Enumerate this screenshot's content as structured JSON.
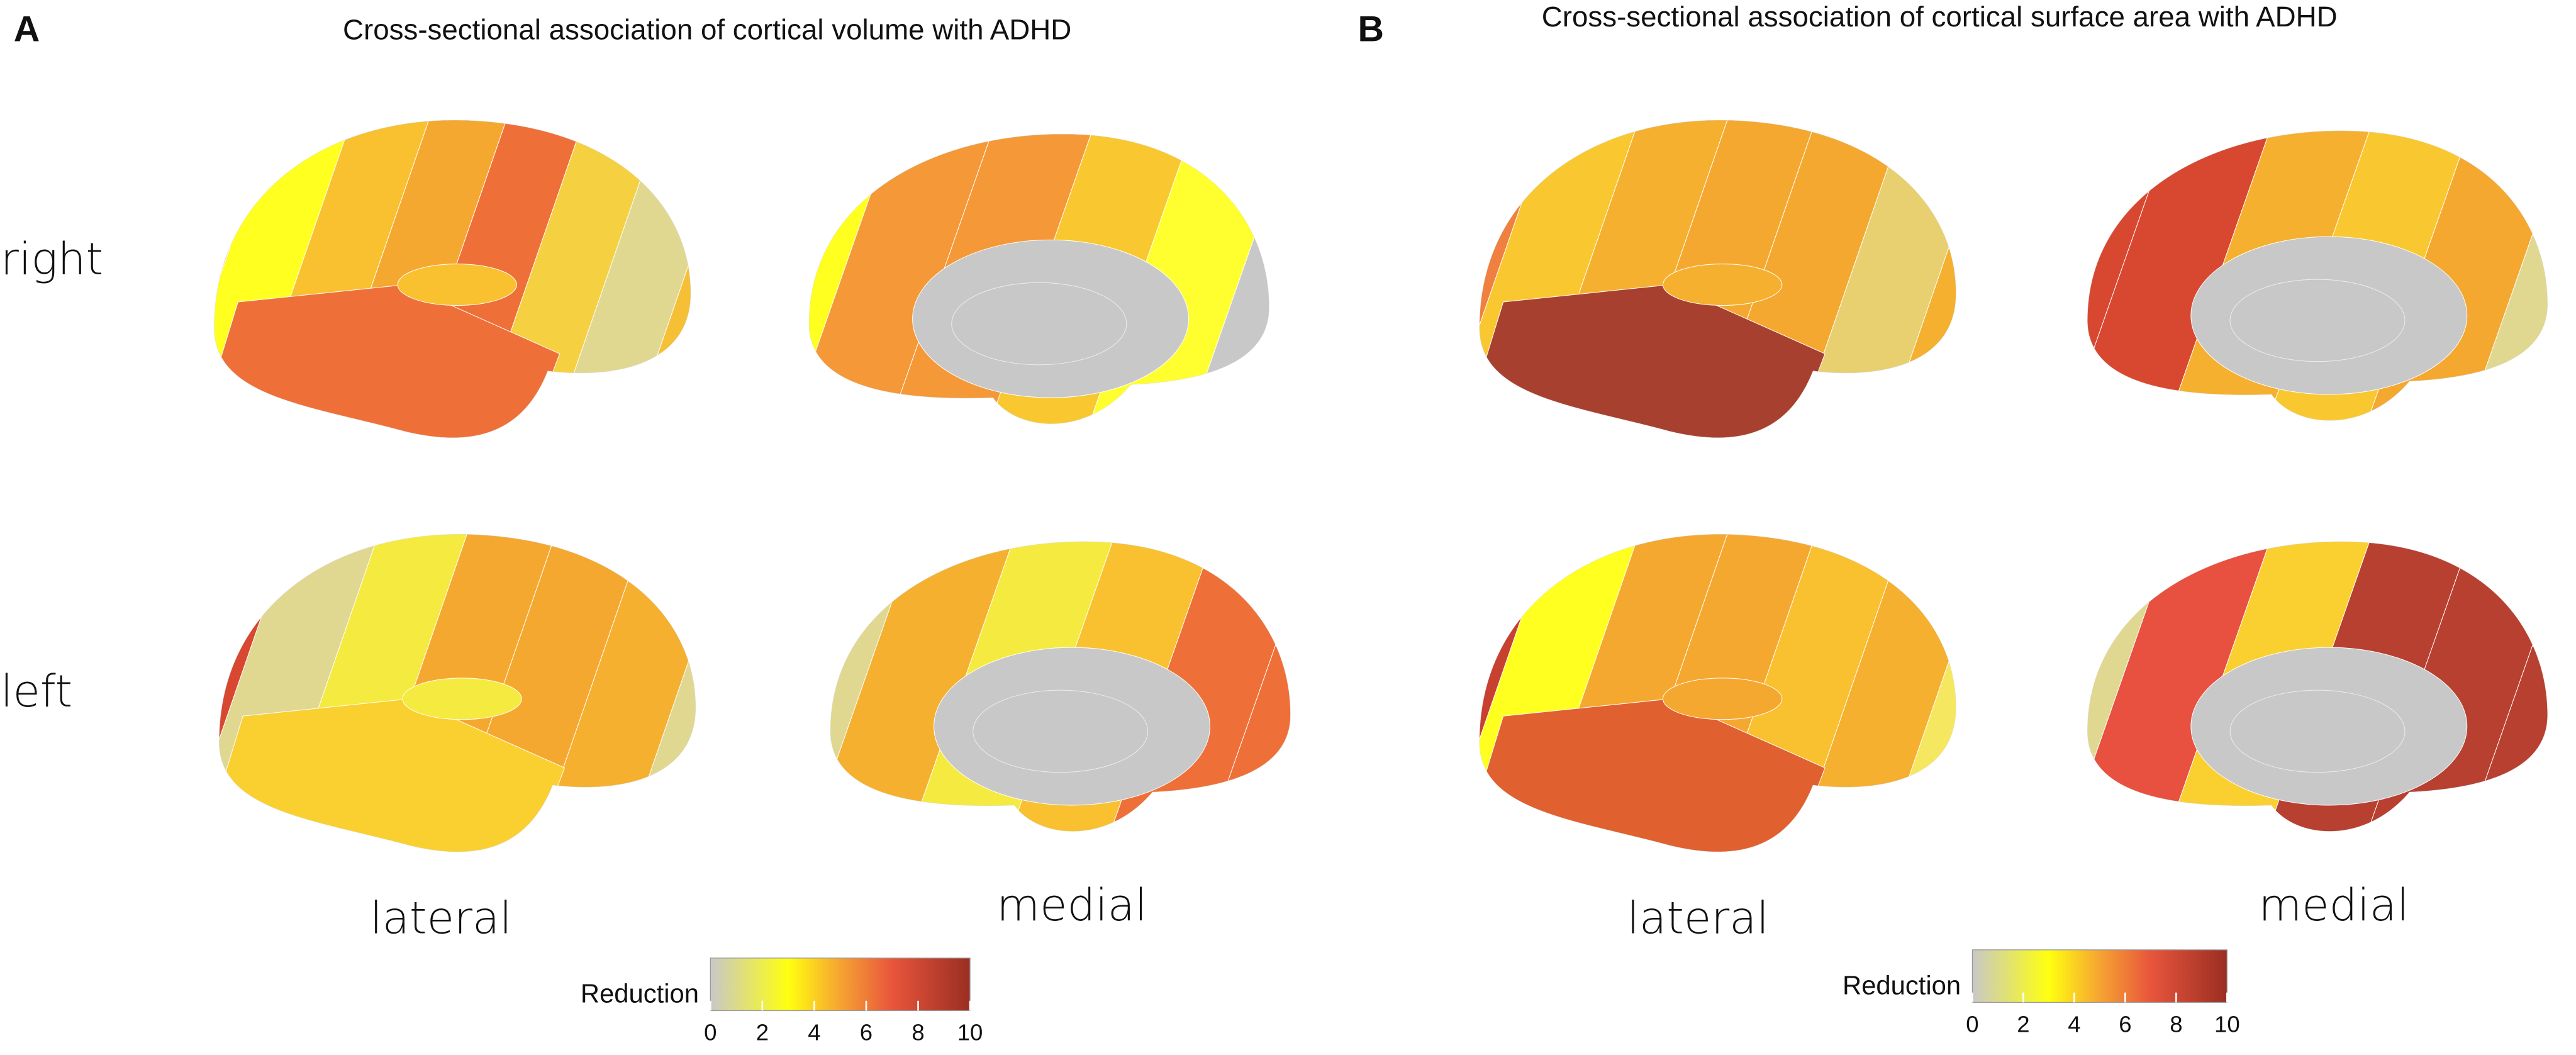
{
  "panels": [
    {
      "letter": "A",
      "title": "Cross-sectional association of cortical volume with ADHD",
      "rows": [
        "right",
        "left"
      ],
      "columns": [
        "lateral",
        "medial"
      ],
      "colorbar": {
        "label": "Reduction",
        "lim": [
          0,
          10
        ],
        "ticks": [
          0,
          2,
          4,
          6,
          8,
          10
        ]
      }
    },
    {
      "letter": "B",
      "title": "Cross-sectional association of cortical surface area with ADHD",
      "rows": [],
      "columns": [
        "lateral",
        "medial"
      ],
      "colorbar": {
        "label": "Reduction",
        "lim": [
          0,
          10
        ],
        "ticks": [
          0,
          2,
          4,
          6,
          8,
          10
        ]
      }
    }
  ]
}
